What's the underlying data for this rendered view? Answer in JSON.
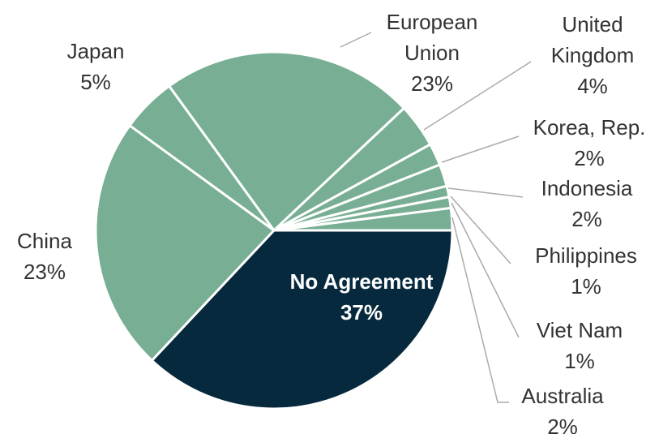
{
  "chart_data": {
    "type": "pie",
    "categories": [
      "No Agreement",
      "China",
      "Japan",
      "European Union",
      "United Kingdom",
      "Korea, Rep.",
      "Indonesia",
      "Philippines",
      "Viet Nam",
      "Australia"
    ],
    "values": [
      37,
      23,
      5,
      23,
      4,
      2,
      2,
      1,
      1,
      2
    ],
    "value_labels": [
      "37%",
      "23%",
      "5%",
      "23%",
      "4%",
      "2%",
      "2%",
      "1%",
      "1%",
      "2%"
    ],
    "colors": [
      "#06293d",
      "#78af94",
      "#78af94",
      "#78af94",
      "#78af94",
      "#78af94",
      "#78af94",
      "#78af94",
      "#78af94",
      "#78af94"
    ]
  }
}
